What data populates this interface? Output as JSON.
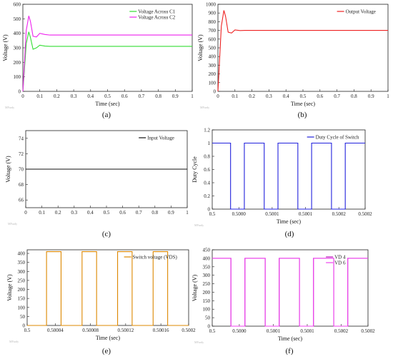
{
  "chart_data": [
    {
      "id": "a",
      "type": "line",
      "caption": "(a)",
      "xlabel": "Time (sec)",
      "ylabel": "Voltage (V)",
      "xlim": [
        0,
        1
      ],
      "ylim": [
        0,
        600
      ],
      "xticks": [
        0,
        0.1,
        0.2,
        0.3,
        0.4,
        0.5,
        0.6,
        0.7,
        0.8,
        0.9,
        1
      ],
      "xticklabels": [
        "0",
        "0.1",
        "0.2",
        "0.3",
        "0.4",
        "0.5",
        "0.6",
        "0.7",
        "0.8",
        "0.9",
        "1"
      ],
      "yticks": [
        0,
        100,
        200,
        300,
        400,
        500,
        600
      ],
      "yticklabels": [
        "0",
        "100",
        "200",
        "300",
        "400",
        "500",
        "600"
      ],
      "legend_position": "top-right",
      "series": [
        {
          "name": "Voltage Across C1",
          "color": "#33dd33",
          "x": [
            0,
            0.02,
            0.035,
            0.045,
            0.06,
            0.08,
            0.1,
            0.13,
            0.16,
            0.2,
            1
          ],
          "y": [
            0,
            330,
            410,
            370,
            290,
            300,
            318,
            312,
            310,
            310,
            310
          ]
        },
        {
          "name": "Voltage Across C2",
          "color": "#ee22ee",
          "x": [
            0,
            0.02,
            0.035,
            0.045,
            0.06,
            0.08,
            0.1,
            0.13,
            0.16,
            0.2,
            1
          ],
          "y": [
            0,
            420,
            520,
            480,
            380,
            375,
            400,
            392,
            388,
            388,
            388
          ]
        }
      ],
      "watermark": "MPurdy"
    },
    {
      "id": "b",
      "type": "line",
      "caption": "(b)",
      "xlabel": "Time (sec)",
      "ylabel": "Voltage (V)",
      "xlim": [
        0,
        1
      ],
      "ylim": [
        0,
        1000
      ],
      "xticks": [
        0,
        0.1,
        0.2,
        0.3,
        0.4,
        0.5,
        0.6,
        0.7,
        0.8,
        0.9,
        1
      ],
      "xticklabels": [
        "0",
        "0.1",
        "0.2",
        "0.3",
        "0.4",
        "0.5",
        "0.6",
        "0.7",
        "0.8",
        "0.9",
        "1"
      ],
      "yticks": [
        0,
        100,
        200,
        300,
        400,
        500,
        600,
        700,
        800,
        900,
        1000
      ],
      "yticklabels": [
        "0",
        "100",
        "200",
        "300",
        "400",
        "500",
        "600",
        "700",
        "800",
        "900",
        "1000"
      ],
      "legend_position": "top-right",
      "series": [
        {
          "name": "Output Voltage",
          "color": "#ee2222",
          "x": [
            0,
            0.02,
            0.035,
            0.045,
            0.06,
            0.08,
            0.1,
            0.13,
            0.16,
            0.2,
            1
          ],
          "y": [
            0,
            750,
            930,
            860,
            680,
            670,
            705,
            698,
            700,
            700,
            700
          ]
        }
      ],
      "watermark": "MPurdy"
    },
    {
      "id": "c",
      "type": "line",
      "caption": "(c)",
      "xlabel": "",
      "ylabel": "Voltage (V)",
      "xlim": [
        0,
        1
      ],
      "ylim": [
        65,
        75
      ],
      "xticks": [
        0,
        0.1,
        0.2,
        0.3,
        0.4,
        0.5,
        0.6,
        0.7,
        0.8,
        0.9,
        1
      ],
      "xticklabels": [
        "0",
        "0.1",
        "0.2",
        "0.3",
        "0.4",
        "0.5",
        "0.6",
        "0.7",
        "0.8",
        "0.9",
        "1"
      ],
      "yticks": [
        66,
        68,
        70,
        72,
        74
      ],
      "yticklabels": [
        "66",
        "68",
        "70",
        "72",
        "74"
      ],
      "legend_position": "top-right",
      "series": [
        {
          "name": "Input Voltage",
          "color": "#111111",
          "x": [
            0,
            1
          ],
          "y": [
            70,
            70
          ]
        }
      ],
      "watermark": "MPurdy"
    },
    {
      "id": "d",
      "type": "line",
      "caption": "(d)",
      "xlabel": "Time (sec)",
      "ylabel": "Duty Cycle",
      "xlim": [
        0,
        1
      ],
      "ylim": [
        0,
        1.2
      ],
      "xticks": [
        0,
        0.174,
        0.392,
        0.61,
        0.828,
        1
      ],
      "xticklabels": [
        "0.5",
        "0.5000",
        "0.5001",
        "0.5001",
        "0.5002",
        "0.5002"
      ],
      "yticks": [
        0,
        0.2,
        0.4,
        0.6,
        0.8,
        1,
        1.2
      ],
      "yticklabels": [
        "0",
        "0.2",
        "0.4",
        "0.6",
        "0.8",
        "1",
        "1.2"
      ],
      "legend_position": "top-right",
      "series": [
        {
          "name": "Duty Cycle of Switch",
          "color": "#2222dd",
          "x": [
            0,
            0.12,
            0.12,
            0.21,
            0.21,
            0.34,
            0.34,
            0.43,
            0.43,
            0.56,
            0.56,
            0.65,
            0.65,
            0.78,
            0.78,
            0.87,
            0.87,
            1
          ],
          "y": [
            1,
            1,
            0,
            0,
            1,
            1,
            0,
            0,
            1,
            1,
            0,
            0,
            1,
            1,
            0,
            0,
            1,
            1
          ]
        }
      ],
      "watermark": "MPurdy"
    },
    {
      "id": "e",
      "type": "line",
      "caption": "(e)",
      "xlabel": "Time (sec)",
      "ylabel": "Voltage (V)",
      "xlim": [
        0,
        1
      ],
      "ylim": [
        0,
        420
      ],
      "xticks": [
        0,
        0.174,
        0.392,
        0.61,
        0.828,
        1
      ],
      "xticklabels": [
        "0.5",
        "0.50004",
        "0.50008",
        "0.50012",
        "0.50016",
        "0.5002"
      ],
      "yticks": [
        0,
        50,
        100,
        150,
        200,
        250,
        300,
        350,
        400
      ],
      "yticklabels": [
        "0",
        "50",
        "100",
        "150",
        "200",
        "250",
        "300",
        "350",
        "400"
      ],
      "legend_position": "top-right",
      "series": [
        {
          "name": "Switch voltage (VDS)",
          "color": "#dd8800",
          "x": [
            0,
            0.12,
            0.12,
            0.21,
            0.21,
            0.34,
            0.34,
            0.43,
            0.43,
            0.56,
            0.56,
            0.65,
            0.65,
            0.78,
            0.78,
            0.87,
            0.87,
            1
          ],
          "y": [
            0,
            0,
            410,
            410,
            0,
            0,
            410,
            410,
            0,
            0,
            410,
            410,
            0,
            0,
            410,
            410,
            0,
            0
          ]
        }
      ],
      "watermark": "MPurdy"
    },
    {
      "id": "f",
      "type": "line",
      "caption": "(f)",
      "xlabel": "Time (sec)",
      "ylabel": "Voltage (V)",
      "xlim": [
        0,
        1
      ],
      "ylim": [
        0,
        450
      ],
      "xticks": [
        0,
        0.174,
        0.392,
        0.61,
        0.828,
        1
      ],
      "xticklabels": [
        "0.5",
        "0.5000",
        "0.5001",
        "0.5001",
        "0.5002",
        "0.5002"
      ],
      "yticks": [
        0,
        50,
        100,
        150,
        200,
        250,
        300,
        350,
        400,
        450
      ],
      "yticklabels": [
        "0",
        "50",
        "100",
        "150",
        "200",
        "250",
        "300",
        "350",
        "400",
        "450"
      ],
      "legend_position": "top-right",
      "series": [
        {
          "name": "VD 4",
          "color": "#bb11bb",
          "x": [
            0,
            0.12,
            0.12,
            0.21,
            0.21,
            0.34,
            0.34,
            0.43,
            0.43,
            0.56,
            0.56,
            0.65,
            0.65,
            0.78,
            0.78,
            0.87,
            0.87,
            1
          ],
          "y": [
            400,
            400,
            0,
            0,
            400,
            400,
            0,
            0,
            400,
            400,
            0,
            0,
            400,
            400,
            0,
            0,
            400,
            400
          ]
        },
        {
          "name": "VD 6",
          "color": "#ee44ee",
          "x": [
            0,
            0.12,
            0.12,
            0.21,
            0.21,
            0.34,
            0.34,
            0.43,
            0.43,
            0.56,
            0.56,
            0.65,
            0.65,
            0.78,
            0.78,
            0.87,
            0.87,
            1
          ],
          "y": [
            400,
            400,
            0,
            0,
            400,
            400,
            0,
            0,
            400,
            400,
            0,
            0,
            400,
            400,
            0,
            0,
            400,
            400
          ]
        }
      ],
      "watermark": "MPurdy"
    }
  ]
}
